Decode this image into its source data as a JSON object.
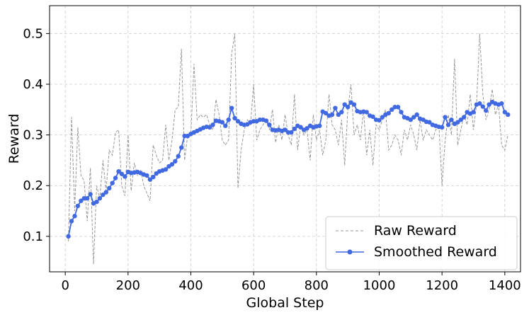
{
  "chart_data": {
    "type": "line",
    "xlabel": "Global Step",
    "ylabel": "Reward",
    "xlim": [
      -50,
      1450
    ],
    "ylim": [
      0.03,
      0.555
    ],
    "x_ticks": [
      0,
      200,
      400,
      600,
      800,
      1000,
      1200,
      1400
    ],
    "y_ticks": [
      0.1,
      0.2,
      0.3,
      0.4,
      0.5
    ],
    "x_tick_labels": [
      "0",
      "200",
      "400",
      "600",
      "800",
      "1000",
      "1200",
      "1400"
    ],
    "y_tick_labels": [
      "0.1",
      "0.2",
      "0.3",
      "0.4",
      "0.5"
    ],
    "grid": true,
    "legend_position": "lower-right",
    "legend": [
      "Raw Reward",
      "Smoothed Reward"
    ],
    "series": [
      {
        "name": "Raw Reward",
        "style": "dashed",
        "color": "#999999",
        "x": [
          10,
          20,
          30,
          40,
          50,
          60,
          70,
          80,
          90,
          100,
          110,
          120,
          130,
          140,
          150,
          160,
          170,
          180,
          190,
          200,
          210,
          220,
          230,
          240,
          250,
          260,
          270,
          280,
          290,
          300,
          310,
          320,
          330,
          340,
          350,
          360,
          370,
          380,
          390,
          400,
          410,
          420,
          430,
          440,
          450,
          460,
          470,
          480,
          490,
          500,
          510,
          520,
          530,
          540,
          550,
          560,
          570,
          580,
          590,
          600,
          610,
          620,
          630,
          640,
          650,
          660,
          670,
          680,
          690,
          700,
          710,
          720,
          730,
          740,
          750,
          760,
          770,
          780,
          790,
          800,
          810,
          820,
          830,
          840,
          850,
          860,
          870,
          880,
          890,
          900,
          910,
          920,
          930,
          940,
          950,
          960,
          970,
          980,
          990,
          1000,
          1010,
          1020,
          1030,
          1040,
          1050,
          1060,
          1070,
          1080,
          1090,
          1100,
          1110,
          1120,
          1130,
          1140,
          1150,
          1160,
          1170,
          1180,
          1190,
          1200,
          1210,
          1220,
          1230,
          1240,
          1250,
          1260,
          1270,
          1280,
          1290,
          1300,
          1310,
          1320,
          1330,
          1340,
          1350,
          1360,
          1370,
          1380,
          1390,
          1400,
          1410
        ],
        "y": [
          0.09,
          0.335,
          0.15,
          0.315,
          0.22,
          0.21,
          0.13,
          0.235,
          0.045,
          0.2,
          0.175,
          0.25,
          0.19,
          0.27,
          0.26,
          0.305,
          0.31,
          0.2,
          0.18,
          0.3,
          0.19,
          0.245,
          0.22,
          0.23,
          0.2,
          0.185,
          0.17,
          0.28,
          0.26,
          0.245,
          0.25,
          0.32,
          0.25,
          0.29,
          0.35,
          0.355,
          0.47,
          0.25,
          0.3,
          0.3,
          0.44,
          0.33,
          0.34,
          0.335,
          0.34,
          0.32,
          0.31,
          0.37,
          0.34,
          0.29,
          0.28,
          0.29,
          0.46,
          0.5,
          0.195,
          0.27,
          0.31,
          0.33,
          0.32,
          0.4,
          0.29,
          0.31,
          0.32,
          0.33,
          0.31,
          0.35,
          0.285,
          0.32,
          0.29,
          0.34,
          0.3,
          0.28,
          0.38,
          0.27,
          0.32,
          0.3,
          0.31,
          0.25,
          0.34,
          0.29,
          0.31,
          0.26,
          0.29,
          0.38,
          0.32,
          0.31,
          0.28,
          0.33,
          0.24,
          0.35,
          0.4,
          0.3,
          0.32,
          0.29,
          0.35,
          0.26,
          0.31,
          0.24,
          0.32,
          0.31,
          0.33,
          0.35,
          0.27,
          0.28,
          0.3,
          0.29,
          0.26,
          0.31,
          0.29,
          0.32,
          0.3,
          0.27,
          0.33,
          0.29,
          0.31,
          0.3,
          0.29,
          0.31,
          0.32,
          0.2,
          0.29,
          0.34,
          0.3,
          0.45,
          0.28,
          0.31,
          0.34,
          0.32,
          0.38,
          0.31,
          0.36,
          0.5,
          0.38,
          0.33,
          0.35,
          0.39,
          0.34,
          0.36,
          0.28,
          0.27,
          0.3
        ],
        "marker": false
      },
      {
        "name": "Smoothed Reward",
        "style": "solid",
        "color": "#4169e1",
        "marker": true,
        "x": [
          10,
          20,
          30,
          40,
          50,
          60,
          70,
          80,
          90,
          100,
          110,
          120,
          130,
          140,
          150,
          160,
          170,
          180,
          190,
          200,
          210,
          220,
          230,
          240,
          250,
          260,
          270,
          280,
          290,
          300,
          310,
          320,
          330,
          340,
          350,
          360,
          370,
          380,
          390,
          400,
          410,
          420,
          430,
          440,
          450,
          460,
          470,
          480,
          490,
          500,
          510,
          520,
          530,
          540,
          550,
          560,
          570,
          580,
          590,
          600,
          610,
          620,
          630,
          640,
          650,
          660,
          670,
          680,
          690,
          700,
          710,
          720,
          730,
          740,
          750,
          760,
          770,
          780,
          790,
          800,
          810,
          820,
          830,
          840,
          850,
          860,
          870,
          880,
          890,
          900,
          910,
          920,
          930,
          940,
          950,
          960,
          970,
          980,
          990,
          1000,
          1010,
          1020,
          1030,
          1040,
          1050,
          1060,
          1070,
          1080,
          1090,
          1100,
          1110,
          1120,
          1130,
          1140,
          1150,
          1160,
          1170,
          1180,
          1190,
          1200,
          1210,
          1220,
          1230,
          1240,
          1250,
          1260,
          1270,
          1280,
          1290,
          1300,
          1310,
          1320,
          1330,
          1340,
          1350,
          1360,
          1370,
          1380,
          1390,
          1400,
          1410
        ],
        "y": [
          0.1,
          0.13,
          0.14,
          0.16,
          0.17,
          0.175,
          0.175,
          0.183,
          0.165,
          0.168,
          0.175,
          0.182,
          0.187,
          0.195,
          0.205,
          0.215,
          0.228,
          0.223,
          0.218,
          0.227,
          0.225,
          0.226,
          0.227,
          0.225,
          0.222,
          0.22,
          0.212,
          0.217,
          0.224,
          0.228,
          0.23,
          0.232,
          0.238,
          0.242,
          0.248,
          0.258,
          0.275,
          0.298,
          0.298,
          0.302,
          0.305,
          0.308,
          0.311,
          0.314,
          0.316,
          0.315,
          0.32,
          0.328,
          0.327,
          0.325,
          0.318,
          0.33,
          0.353,
          0.333,
          0.327,
          0.322,
          0.32,
          0.321,
          0.325,
          0.327,
          0.327,
          0.33,
          0.33,
          0.328,
          0.32,
          0.31,
          0.309,
          0.31,
          0.308,
          0.31,
          0.305,
          0.305,
          0.312,
          0.318,
          0.315,
          0.31,
          0.313,
          0.318,
          0.315,
          0.317,
          0.318,
          0.346,
          0.343,
          0.338,
          0.34,
          0.353,
          0.34,
          0.345,
          0.36,
          0.355,
          0.364,
          0.36,
          0.347,
          0.345,
          0.346,
          0.345,
          0.338,
          0.336,
          0.33,
          0.329,
          0.335,
          0.34,
          0.343,
          0.35,
          0.355,
          0.355,
          0.345,
          0.335,
          0.333,
          0.33,
          0.335,
          0.34,
          0.332,
          0.33,
          0.326,
          0.325,
          0.32,
          0.318,
          0.316,
          0.315,
          0.335,
          0.32,
          0.33,
          0.322,
          0.325,
          0.33,
          0.335,
          0.345,
          0.342,
          0.345,
          0.36,
          0.362,
          0.356,
          0.348,
          0.36,
          0.365,
          0.362,
          0.36,
          0.362,
          0.345,
          0.34
        ]
      }
    ]
  }
}
